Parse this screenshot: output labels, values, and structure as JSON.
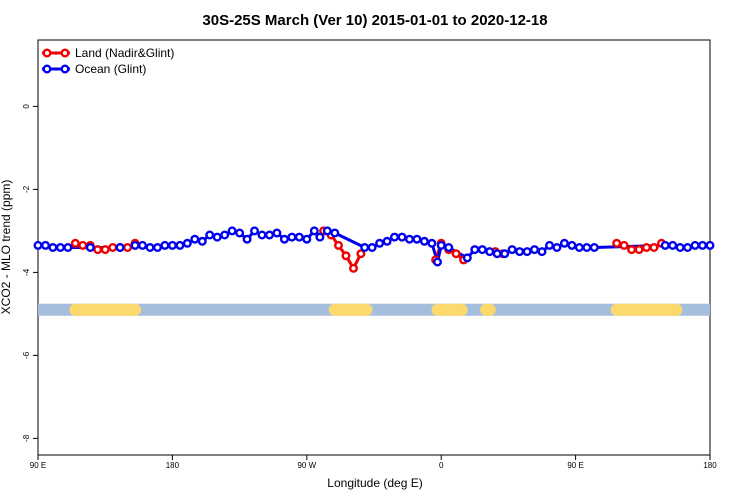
{
  "chart_data": {
    "type": "line",
    "title": "30S-25S March (Ver 10)   2015-01-01 to 2020-12-18",
    "xlabel": "Longitude (deg E)",
    "ylabel": "XCO2 - MLO trend (ppm)",
    "xlim": [
      90,
      450
    ],
    "ylim": [
      -8.4,
      1.6
    ],
    "x_ticks": [
      {
        "value": 90,
        "label": "90 E"
      },
      {
        "value": 162,
        "label": "180"
      },
      {
        "value": 234,
        "label": "90 W"
      },
      {
        "value": 306,
        "label": "0"
      },
      {
        "value": 378,
        "label": "90 E"
      },
      {
        "value": 450,
        "label": "180"
      }
    ],
    "y_ticks": [
      {
        "value": 0,
        "label": "0"
      },
      {
        "value": -2,
        "label": "-2"
      },
      {
        "value": -4,
        "label": "-4"
      },
      {
        "value": -6,
        "label": "-6"
      },
      {
        "value": -8,
        "label": "-8"
      }
    ],
    "grid": false,
    "legend_position": "top-left",
    "series": [
      {
        "name": "Land (Nadir&Glint)",
        "color": "#ee0000",
        "segments": [
          [
            [
              110.0,
              -3.3
            ],
            [
              114.0,
              -3.35
            ],
            [
              118.0,
              -3.35
            ],
            [
              122.0,
              -3.45
            ],
            [
              126.0,
              -3.45
            ],
            [
              130.0,
              -3.4
            ],
            [
              134.0,
              -3.4
            ],
            [
              138.0,
              -3.4
            ],
            [
              142.0,
              -3.3
            ]
          ],
          [
            [
              243.0,
              -3.0
            ],
            [
              247.0,
              -3.1
            ],
            [
              251.0,
              -3.35
            ],
            [
              255.0,
              -3.6
            ],
            [
              259.0,
              -3.9
            ],
            [
              263.0,
              -3.55
            ]
          ],
          [
            [
              303.0,
              -3.7
            ],
            [
              306.0,
              -3.3
            ],
            [
              310.0,
              -3.45
            ],
            [
              314.0,
              -3.55
            ],
            [
              318.0,
              -3.7
            ]
          ],
          [
            [
              335.0,
              -3.5
            ],
            [
              339.0,
              -3.55
            ]
          ],
          [
            [
              400.0,
              -3.3
            ],
            [
              404.0,
              -3.35
            ],
            [
              408.0,
              -3.45
            ],
            [
              412.0,
              -3.45
            ],
            [
              416.0,
              -3.4
            ],
            [
              420.0,
              -3.4
            ],
            [
              424.0,
              -3.3
            ]
          ]
        ]
      },
      {
        "name": "Ocean (Glint)",
        "color": "#0000ee",
        "points": [
          [
            90.0,
            -3.35
          ],
          [
            94.0,
            -3.35
          ],
          [
            98.0,
            -3.4
          ],
          [
            102.0,
            -3.4
          ],
          [
            106.0,
            -3.4
          ],
          [
            118.0,
            -3.4
          ],
          [
            134.0,
            -3.4
          ],
          [
            142.0,
            -3.35
          ],
          [
            146.0,
            -3.35
          ],
          [
            150.0,
            -3.4
          ],
          [
            154.0,
            -3.4
          ],
          [
            158.0,
            -3.35
          ],
          [
            162.0,
            -3.35
          ],
          [
            166.0,
            -3.35
          ],
          [
            170.0,
            -3.3
          ],
          [
            174.0,
            -3.2
          ],
          [
            178.0,
            -3.25
          ],
          [
            182.0,
            -3.1
          ],
          [
            186.0,
            -3.15
          ],
          [
            190.0,
            -3.1
          ],
          [
            194.0,
            -3.0
          ],
          [
            198.0,
            -3.05
          ],
          [
            202.0,
            -3.2
          ],
          [
            206.0,
            -3.0
          ],
          [
            210.0,
            -3.1
          ],
          [
            214.0,
            -3.1
          ],
          [
            218.0,
            -3.05
          ],
          [
            222.0,
            -3.2
          ],
          [
            226.0,
            -3.15
          ],
          [
            230.0,
            -3.15
          ],
          [
            234.0,
            -3.2
          ],
          [
            238.0,
            -3.0
          ],
          [
            241.0,
            -3.15
          ],
          [
            245.0,
            -3.0
          ],
          [
            249.0,
            -3.05
          ],
          [
            265.0,
            -3.4
          ],
          [
            269.0,
            -3.4
          ],
          [
            273.0,
            -3.3
          ],
          [
            277.0,
            -3.25
          ],
          [
            281.0,
            -3.15
          ],
          [
            285.0,
            -3.15
          ],
          [
            289.0,
            -3.2
          ],
          [
            293.0,
            -3.2
          ],
          [
            297.0,
            -3.25
          ],
          [
            301.0,
            -3.3
          ],
          [
            304.0,
            -3.75
          ],
          [
            306.0,
            -3.35
          ],
          [
            310.0,
            -3.4
          ],
          [
            320.0,
            -3.65
          ],
          [
            324.0,
            -3.45
          ],
          [
            328.0,
            -3.45
          ],
          [
            332.0,
            -3.5
          ],
          [
            336.0,
            -3.55
          ],
          [
            340.0,
            -3.55
          ],
          [
            344.0,
            -3.45
          ],
          [
            348.0,
            -3.5
          ],
          [
            352.0,
            -3.5
          ],
          [
            356.0,
            -3.45
          ],
          [
            360.0,
            -3.5
          ],
          [
            364.0,
            -3.35
          ],
          [
            368.0,
            -3.4
          ],
          [
            372.0,
            -3.3
          ],
          [
            376.0,
            -3.35
          ],
          [
            380.0,
            -3.4
          ],
          [
            384.0,
            -3.4
          ],
          [
            388.0,
            -3.4
          ],
          [
            426.0,
            -3.35
          ],
          [
            430.0,
            -3.35
          ],
          [
            434.0,
            -3.4
          ],
          [
            438.0,
            -3.4
          ],
          [
            442.0,
            -3.35
          ],
          [
            446.0,
            -3.35
          ],
          [
            450.0,
            -3.35
          ]
        ]
      }
    ],
    "surface_strip": {
      "y": -4.9,
      "ocean_color": "#a6bedd",
      "land_color": "#fcd96c",
      "land_ranges": [
        [
          110,
          142
        ],
        [
          249,
          266
        ],
        [
          304,
          317
        ],
        [
          330,
          332
        ],
        [
          400,
          432
        ]
      ]
    }
  }
}
